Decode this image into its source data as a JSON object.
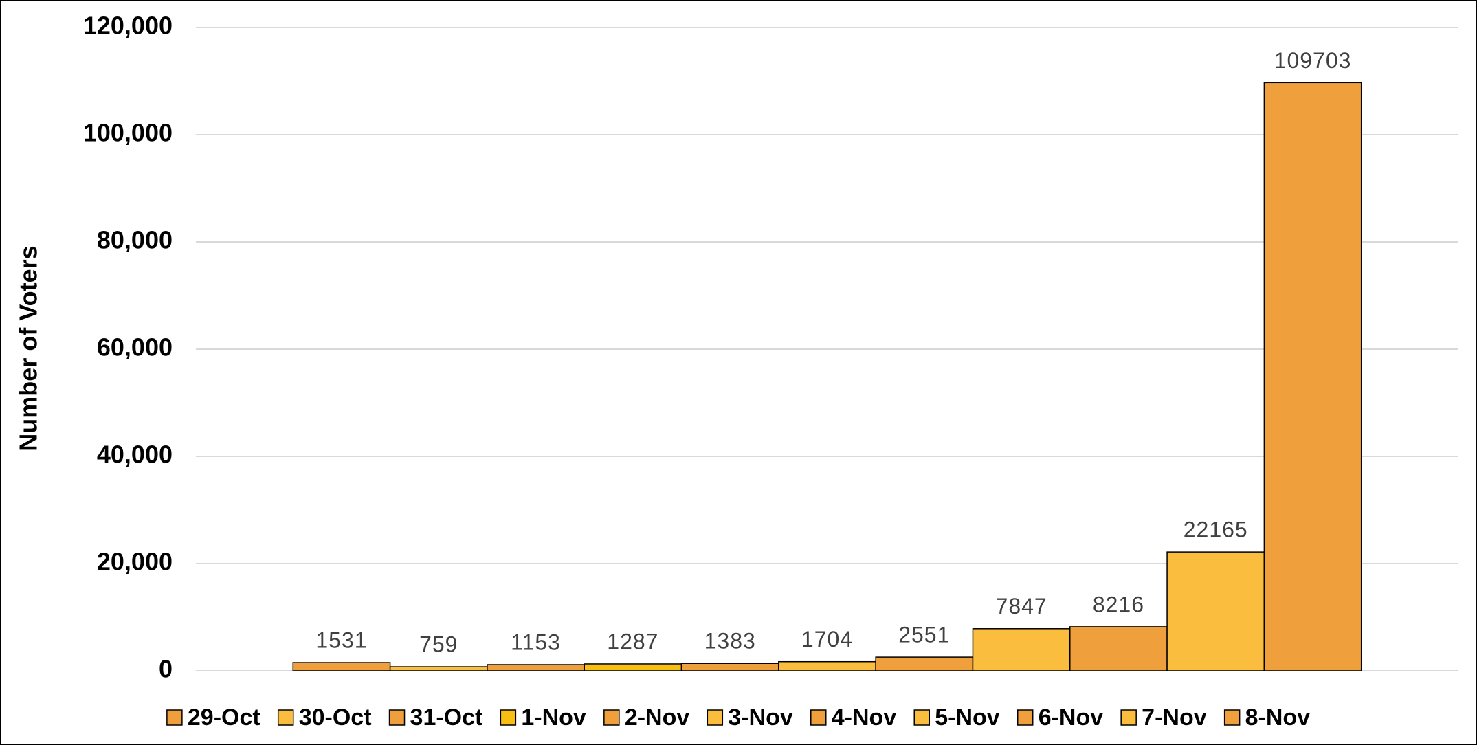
{
  "chart_data": {
    "type": "bar",
    "y_label": "Number of Voters",
    "categories": [
      "29-Oct",
      "30-Oct",
      "31-Oct",
      "1-Nov",
      "2-Nov",
      "3-Nov",
      "4-Nov",
      "5-Nov",
      "6-Nov",
      "7-Nov",
      "8-Nov"
    ],
    "values": [
      1531,
      759,
      1153,
      1287,
      1383,
      1704,
      2551,
      7847,
      8216,
      22165,
      109703
    ],
    "colors": [
      "#EFA03C",
      "#FBBD3E",
      "#EFA03C",
      "#F7BE14",
      "#EFA03C",
      "#FBBD3E",
      "#EFA03C",
      "#FBBD3E",
      "#EFA03C",
      "#FBBD3E",
      "#EFA03C"
    ],
    "ylim": [
      0,
      120000
    ],
    "yticks": [
      0,
      {
        "value": 20000,
        "label": "20,000"
      },
      {
        "value": 40000,
        "label": "40,000"
      },
      {
        "value": 60000,
        "label": "60,000"
      },
      {
        "value": 80000,
        "label": "80,000"
      },
      {
        "value": 100000,
        "label": "100,000"
      },
      {
        "value": 120000,
        "label": "120,000"
      }
    ],
    "grid": true,
    "legend": "bottom"
  }
}
